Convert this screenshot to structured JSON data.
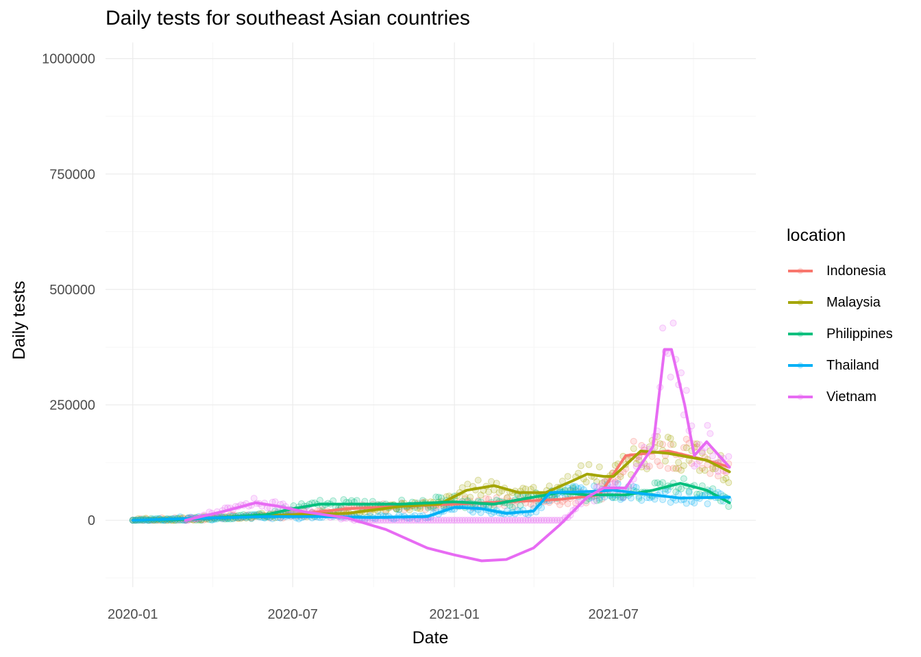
{
  "chart_data": {
    "type": "line",
    "title": "Daily tests for southeast Asian countries",
    "xlabel": "Date",
    "ylabel": "Daily tests",
    "x_ticks": [
      "2020-01",
      "2020-07",
      "2021-01",
      "2021-07"
    ],
    "x_range": [
      "2019-12-01",
      "2021-12-10"
    ],
    "y_ticks": [
      0,
      250000,
      500000,
      750000,
      1000000
    ],
    "y_tick_labels": [
      "0",
      "250000",
      "500000",
      "750000",
      "1000000"
    ],
    "ylim": [
      -145000,
      1035000
    ],
    "grid": true,
    "legend_title": "location",
    "legend_position": "right",
    "series": [
      {
        "name": "Indonesia",
        "color": "#F8766D",
        "trend": [
          [
            "2020-01-01",
            0
          ],
          [
            "2020-03-01",
            2000
          ],
          [
            "2020-05-01",
            8000
          ],
          [
            "2020-07-01",
            12000
          ],
          [
            "2020-09-01",
            25000
          ],
          [
            "2020-11-01",
            30000
          ],
          [
            "2021-01-01",
            35000
          ],
          [
            "2021-03-01",
            40000
          ],
          [
            "2021-05-01",
            45000
          ],
          [
            "2021-06-15",
            55000
          ],
          [
            "2021-07-15",
            140000
          ],
          [
            "2021-09-01",
            150000
          ],
          [
            "2021-10-15",
            130000
          ],
          [
            "2021-11-10",
            115000
          ]
        ]
      },
      {
        "name": "Malaysia",
        "color": "#A3A500",
        "trend": [
          [
            "2020-01-01",
            0
          ],
          [
            "2020-03-01",
            2000
          ],
          [
            "2020-05-01",
            8000
          ],
          [
            "2020-07-01",
            12000
          ],
          [
            "2020-09-01",
            15000
          ],
          [
            "2020-11-01",
            30000
          ],
          [
            "2020-12-15",
            35000
          ],
          [
            "2021-01-15",
            65000
          ],
          [
            "2021-02-15",
            75000
          ],
          [
            "2021-03-15",
            60000
          ],
          [
            "2021-04-15",
            60000
          ],
          [
            "2021-05-15",
            85000
          ],
          [
            "2021-06-01",
            100000
          ],
          [
            "2021-06-20",
            95000
          ],
          [
            "2021-07-01",
            95000
          ],
          [
            "2021-08-01",
            150000
          ],
          [
            "2021-09-01",
            145000
          ],
          [
            "2021-10-15",
            130000
          ],
          [
            "2021-11-10",
            105000
          ]
        ]
      },
      {
        "name": "Philippines",
        "color": "#00BF7D",
        "trend": [
          [
            "2020-01-01",
            0
          ],
          [
            "2020-03-01",
            2000
          ],
          [
            "2020-05-01",
            8000
          ],
          [
            "2020-06-01",
            12000
          ],
          [
            "2020-07-01",
            25000
          ],
          [
            "2020-08-01",
            35000
          ],
          [
            "2020-09-01",
            35000
          ],
          [
            "2020-11-01",
            35000
          ],
          [
            "2021-01-01",
            40000
          ],
          [
            "2021-02-15",
            35000
          ],
          [
            "2021-04-01",
            50000
          ],
          [
            "2021-05-01",
            60000
          ],
          [
            "2021-06-01",
            55000
          ],
          [
            "2021-07-15",
            55000
          ],
          [
            "2021-08-15",
            65000
          ],
          [
            "2021-09-15",
            80000
          ],
          [
            "2021-10-15",
            65000
          ],
          [
            "2021-11-10",
            38000
          ]
        ]
      },
      {
        "name": "Thailand",
        "color": "#00B0F6",
        "trend": [
          [
            "2020-01-01",
            0
          ],
          [
            "2020-04-01",
            5000
          ],
          [
            "2020-06-01",
            8000
          ],
          [
            "2020-08-01",
            8000
          ],
          [
            "2020-10-01",
            6000
          ],
          [
            "2020-12-01",
            8000
          ],
          [
            "2021-01-01",
            28000
          ],
          [
            "2021-02-01",
            25000
          ],
          [
            "2021-03-01",
            15000
          ],
          [
            "2021-04-01",
            20000
          ],
          [
            "2021-04-20",
            60000
          ],
          [
            "2021-06-01",
            62000
          ],
          [
            "2021-07-01",
            65000
          ],
          [
            "2021-08-15",
            55000
          ],
          [
            "2021-09-15",
            48000
          ],
          [
            "2021-11-10",
            50000
          ]
        ]
      },
      {
        "name": "Vietnam",
        "color": "#E76BF3",
        "trend": [
          [
            "2020-03-01",
            0
          ],
          [
            "2020-04-15",
            20000
          ],
          [
            "2020-05-20",
            38000
          ],
          [
            "2020-06-15",
            30000
          ],
          [
            "2020-07-15",
            18000
          ],
          [
            "2020-09-01",
            5000
          ],
          [
            "2020-10-15",
            -20000
          ],
          [
            "2020-12-01",
            -60000
          ],
          [
            "2021-01-01",
            -75000
          ],
          [
            "2021-02-01",
            -88000
          ],
          [
            "2021-03-01",
            -85000
          ],
          [
            "2021-04-01",
            -60000
          ],
          [
            "2021-05-01",
            -10000
          ],
          [
            "2021-06-01",
            50000
          ],
          [
            "2021-06-20",
            70000
          ],
          [
            "2021-07-15",
            70000
          ],
          [
            "2021-08-15",
            160000
          ],
          [
            "2021-08-28",
            370000
          ],
          [
            "2021-09-05",
            370000
          ],
          [
            "2021-09-20",
            250000
          ],
          [
            "2021-10-01",
            140000
          ],
          [
            "2021-10-15",
            170000
          ],
          [
            "2021-11-10",
            115000
          ]
        ]
      }
    ]
  }
}
